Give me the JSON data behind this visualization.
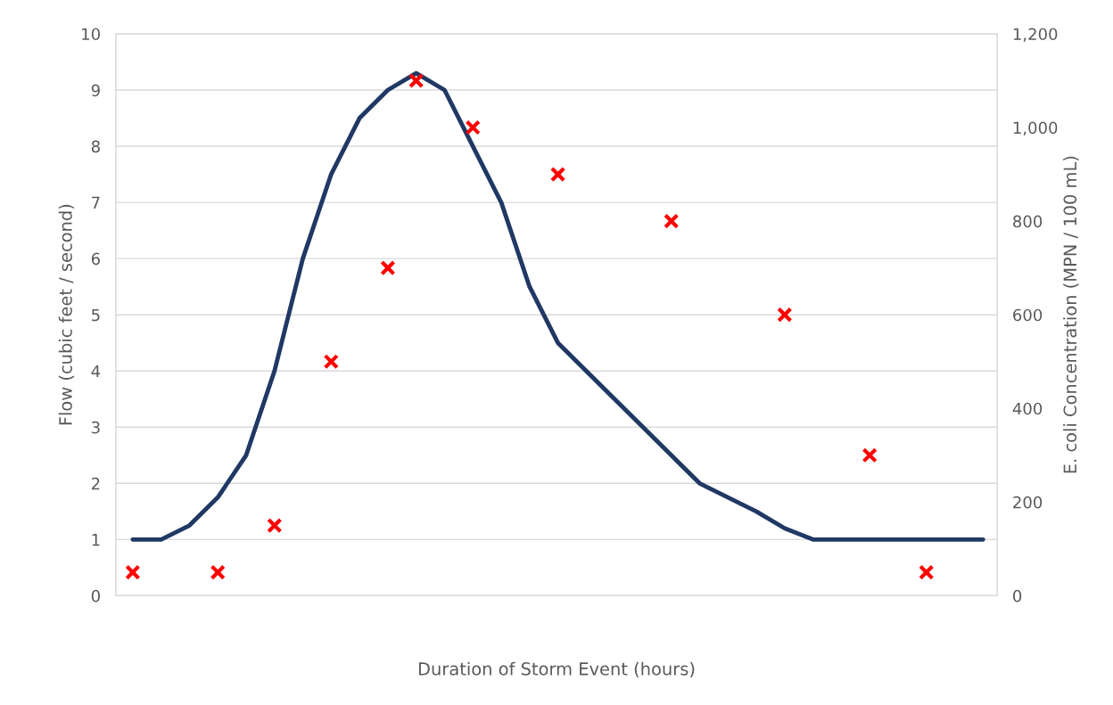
{
  "chart_data": {
    "type": "line",
    "xlabel": "Duration of Storm Event (hours)",
    "ylabel": "Flow (cubic feet / second)",
    "y2label": "E. coli Concentration (MPN / 100 mL)",
    "categories": [
      null,
      null,
      null,
      null,
      null,
      null,
      null,
      null,
      null,
      null,
      null,
      null,
      null,
      null,
      null,
      null,
      null,
      null,
      null,
      null,
      null,
      null,
      null,
      null,
      null,
      null,
      null,
      null,
      null,
      null,
      null
    ],
    "series": [
      {
        "color": "#203864",
        "marker": "none",
        "line_style": "solid",
        "values": [
          1,
          1,
          1.25,
          1.75,
          2.5,
          4,
          6,
          7.5,
          8.5,
          9,
          9.3,
          9,
          8,
          7,
          5.5,
          4.5,
          4,
          3.5,
          3,
          2.5,
          2,
          1.75,
          1.5,
          1.2,
          1,
          1,
          1,
          1,
          1,
          1,
          1
        ]
      },
      {
        "type": "scatter",
        "axis": "y2",
        "color": "#ff0000",
        "marker": "cross",
        "values": [
          50,
          null,
          null,
          50,
          null,
          150,
          null,
          500,
          null,
          700,
          1100,
          null,
          1000,
          null,
          null,
          900,
          null,
          null,
          null,
          800,
          null,
          null,
          null,
          600,
          null,
          null,
          300,
          null,
          50,
          null,
          null
        ]
      }
    ],
    "ylim": [
      0,
      10
    ],
    "yticks": [
      0,
      1,
      2,
      3,
      4,
      5,
      6,
      7,
      8,
      9,
      10
    ],
    "y2lim": [
      0,
      1200
    ],
    "y2ticks": [
      0,
      200,
      400,
      600,
      800,
      {
        "value": 1000,
        "label": "1,000"
      },
      {
        "value": 1200,
        "label": "1,200"
      }
    ],
    "grid": "y",
    "legend": false
  }
}
